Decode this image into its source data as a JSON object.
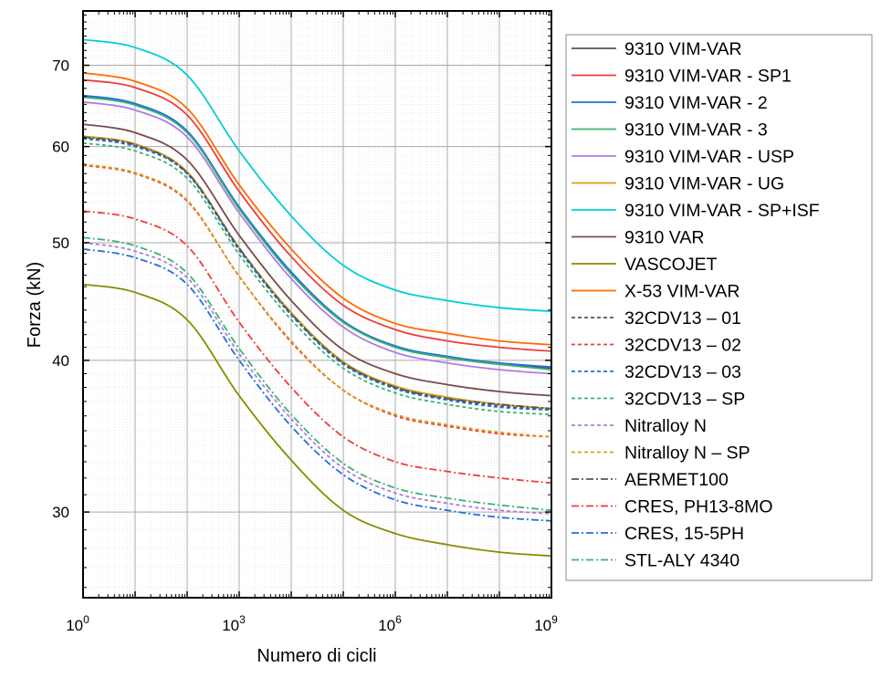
{
  "chart_data": {
    "type": "line",
    "title": "",
    "xlabel": "Numero di cicli",
    "ylabel": "Forza (kN)",
    "xscale": "log",
    "yscale": "log",
    "xlim": [
      1,
      1000000000
    ],
    "ylim": [
      25.5,
      77.6
    ],
    "x_tick_labels": [
      {
        "base": "10",
        "exp": "0",
        "value": 1
      },
      {
        "base": "10",
        "exp": "3",
        "value": 1000
      },
      {
        "base": "10",
        "exp": "6",
        "value": 1000000
      },
      {
        "base": "10",
        "exp": "9",
        "value": 1000000000
      }
    ],
    "y_tick_labels": [
      "30",
      "40",
      "50",
      "60",
      "70"
    ],
    "y_ticks": [
      30,
      40,
      50,
      60,
      70
    ],
    "grid": true,
    "legend_position": "outside-right",
    "x": [
      1,
      10,
      100,
      1000,
      10000,
      100000,
      1000000,
      10000000,
      100000000,
      1000000000
    ],
    "series": [
      {
        "name": "9310 VIM-VAR",
        "color": "#555555",
        "dash": "solid",
        "values": [
          66.0,
          65.0,
          61.7,
          53.4,
          47.2,
          43.0,
          41.1,
          40.2,
          39.7,
          39.4
        ]
      },
      {
        "name": "9310 VIM-VAR - SP1",
        "color": "#f03c3c",
        "dash": "solid",
        "values": [
          68.1,
          67.1,
          63.7,
          55.1,
          48.7,
          44.4,
          42.4,
          41.5,
          41.0,
          40.7
        ]
      },
      {
        "name": "9310 VIM-VAR - 2",
        "color": "#1f6fe0",
        "dash": "solid",
        "values": [
          66.1,
          65.1,
          61.8,
          53.5,
          47.3,
          43.1,
          41.1,
          40.3,
          39.8,
          39.5
        ]
      },
      {
        "name": "9310 VIM-VAR - 3",
        "color": "#3cb371",
        "dash": "solid",
        "values": [
          65.9,
          64.9,
          61.6,
          53.3,
          47.1,
          43.0,
          41.0,
          40.2,
          39.7,
          39.3
        ]
      },
      {
        "name": "9310 VIM-VAR - USP",
        "color": "#b07be0",
        "dash": "solid",
        "values": [
          65.3,
          64.3,
          61.1,
          52.9,
          46.7,
          42.6,
          40.6,
          39.8,
          39.3,
          39.0
        ]
      },
      {
        "name": "9310 VIM-VAR - UG",
        "color": "#d4a017",
        "dash": "solid",
        "values": [
          61.2,
          60.3,
          57.2,
          49.5,
          43.8,
          39.9,
          38.1,
          37.3,
          36.8,
          36.5
        ]
      },
      {
        "name": "9310 VIM-VAR - SP+ISF",
        "color": "#00ced1",
        "dash": "solid",
        "values": [
          73.5,
          72.4,
          68.7,
          59.5,
          52.6,
          47.9,
          45.7,
          44.8,
          44.2,
          43.9
        ]
      },
      {
        "name": "9310 VAR",
        "color": "#7b4b4b",
        "dash": "solid",
        "values": [
          62.6,
          61.6,
          58.5,
          50.7,
          44.8,
          40.8,
          39.0,
          38.2,
          37.7,
          37.4
        ]
      },
      {
        "name": "VASCOJET",
        "color": "#8b8b00",
        "dash": "solid",
        "values": [
          46.2,
          45.5,
          43.2,
          37.4,
          33.1,
          30.1,
          28.8,
          28.2,
          27.8,
          27.6
        ]
      },
      {
        "name": "X-53 VIM-VAR",
        "color": "#ff6a00",
        "dash": "solid",
        "values": [
          69.0,
          67.9,
          64.5,
          55.8,
          49.4,
          45.0,
          42.9,
          42.1,
          41.5,
          41.2
        ]
      },
      {
        "name": "32CDV13 – 01",
        "color": "#555555",
        "dash": "dash",
        "values": [
          61.0,
          60.1,
          57.0,
          49.4,
          43.6,
          39.8,
          38.0,
          37.2,
          36.7,
          36.4
        ]
      },
      {
        "name": "32CDV13 – 02",
        "color": "#f03c3c",
        "dash": "dash",
        "values": [
          57.9,
          57.0,
          54.1,
          46.9,
          41.4,
          37.8,
          36.0,
          35.3,
          34.8,
          34.6
        ]
      },
      {
        "name": "32CDV13 – 03",
        "color": "#1f6fe0",
        "dash": "dash",
        "values": [
          60.9,
          60.0,
          57.0,
          49.3,
          43.6,
          39.7,
          37.9,
          37.1,
          36.6,
          36.4
        ]
      },
      {
        "name": "32CDV13 – SP",
        "color": "#3cb371",
        "dash": "dash",
        "values": [
          60.4,
          59.5,
          56.5,
          48.9,
          43.2,
          39.4,
          37.6,
          36.8,
          36.3,
          36.1
        ]
      },
      {
        "name": "Nitralloy N",
        "color": "#b07be0",
        "dash": "dash",
        "values": [
          50.0,
          49.2,
          46.8,
          40.5,
          35.8,
          32.6,
          31.1,
          30.5,
          30.1,
          29.9
        ]
      },
      {
        "name": "Nitralloy N – SP",
        "color": "#d4a017",
        "dash": "dash",
        "values": [
          58.0,
          57.1,
          54.2,
          46.9,
          41.5,
          37.8,
          36.1,
          35.4,
          34.9,
          34.6
        ]
      },
      {
        "name": "AERMET100",
        "color": "#555555",
        "dash": "dashdot",
        "values": [
          61.1,
          60.2,
          57.1,
          49.5,
          43.7,
          39.8,
          38.0,
          37.2,
          36.8,
          36.5
        ]
      },
      {
        "name": "CRES, PH13-8MO",
        "color": "#f03c3c",
        "dash": "dashdot",
        "values": [
          53.1,
          52.3,
          49.7,
          43.0,
          38.0,
          34.6,
          33.0,
          32.4,
          32.0,
          31.7
        ]
      },
      {
        "name": "CRES, 15-5PH",
        "color": "#1f6fe0",
        "dash": "dashdot",
        "values": [
          49.4,
          48.6,
          46.2,
          40.0,
          35.3,
          32.2,
          30.7,
          30.1,
          29.7,
          29.5
        ]
      },
      {
        "name": "STL-ALY 4340",
        "color": "#3cb371",
        "dash": "dashdot",
        "values": [
          50.5,
          49.7,
          47.2,
          40.9,
          36.1,
          32.9,
          31.4,
          30.8,
          30.4,
          30.1
        ]
      }
    ]
  }
}
